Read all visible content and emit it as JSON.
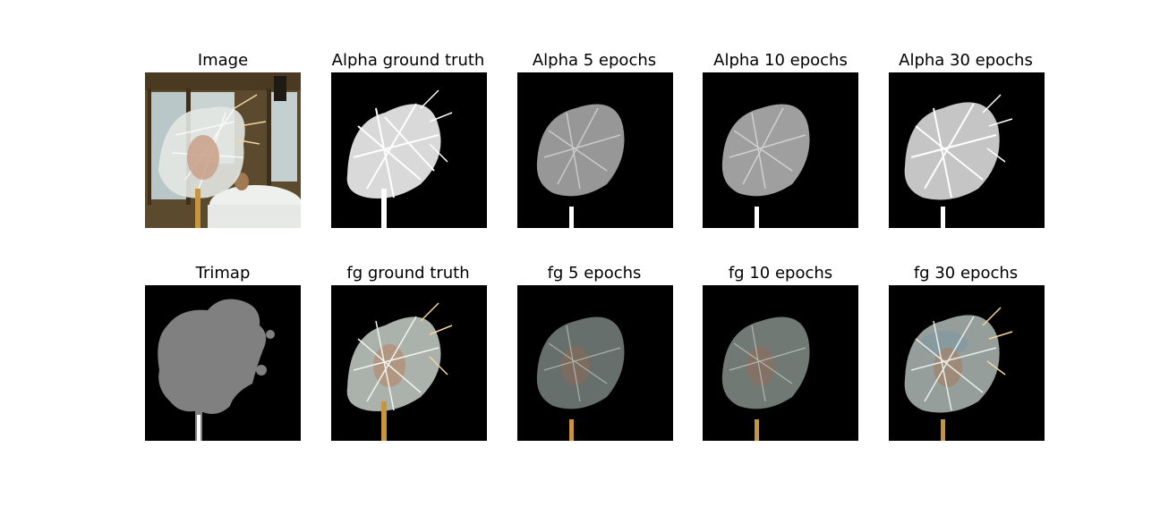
{
  "panels": [
    {
      "title": "Image",
      "kind": "rgb_scene"
    },
    {
      "title": "Alpha ground truth",
      "kind": "alpha_sharp"
    },
    {
      "title": "Alpha 5 epochs",
      "kind": "alpha_soft"
    },
    {
      "title": "Alpha 10 epochs",
      "kind": "alpha_soft"
    },
    {
      "title": "Alpha 30 epochs",
      "kind": "alpha_bright"
    },
    {
      "title": "Trimap",
      "kind": "trimap"
    },
    {
      "title": "fg ground truth",
      "kind": "fg_sharp"
    },
    {
      "title": "fg 5 epochs",
      "kind": "fg_soft"
    },
    {
      "title": "fg 10 epochs",
      "kind": "fg_soft"
    },
    {
      "title": "fg 30 epochs",
      "kind": "fg_bright"
    }
  ],
  "colors": {
    "background": "#000000",
    "trimap_unknown": "#808080",
    "stem": "#c8953a",
    "alpha": "#ffffff"
  }
}
